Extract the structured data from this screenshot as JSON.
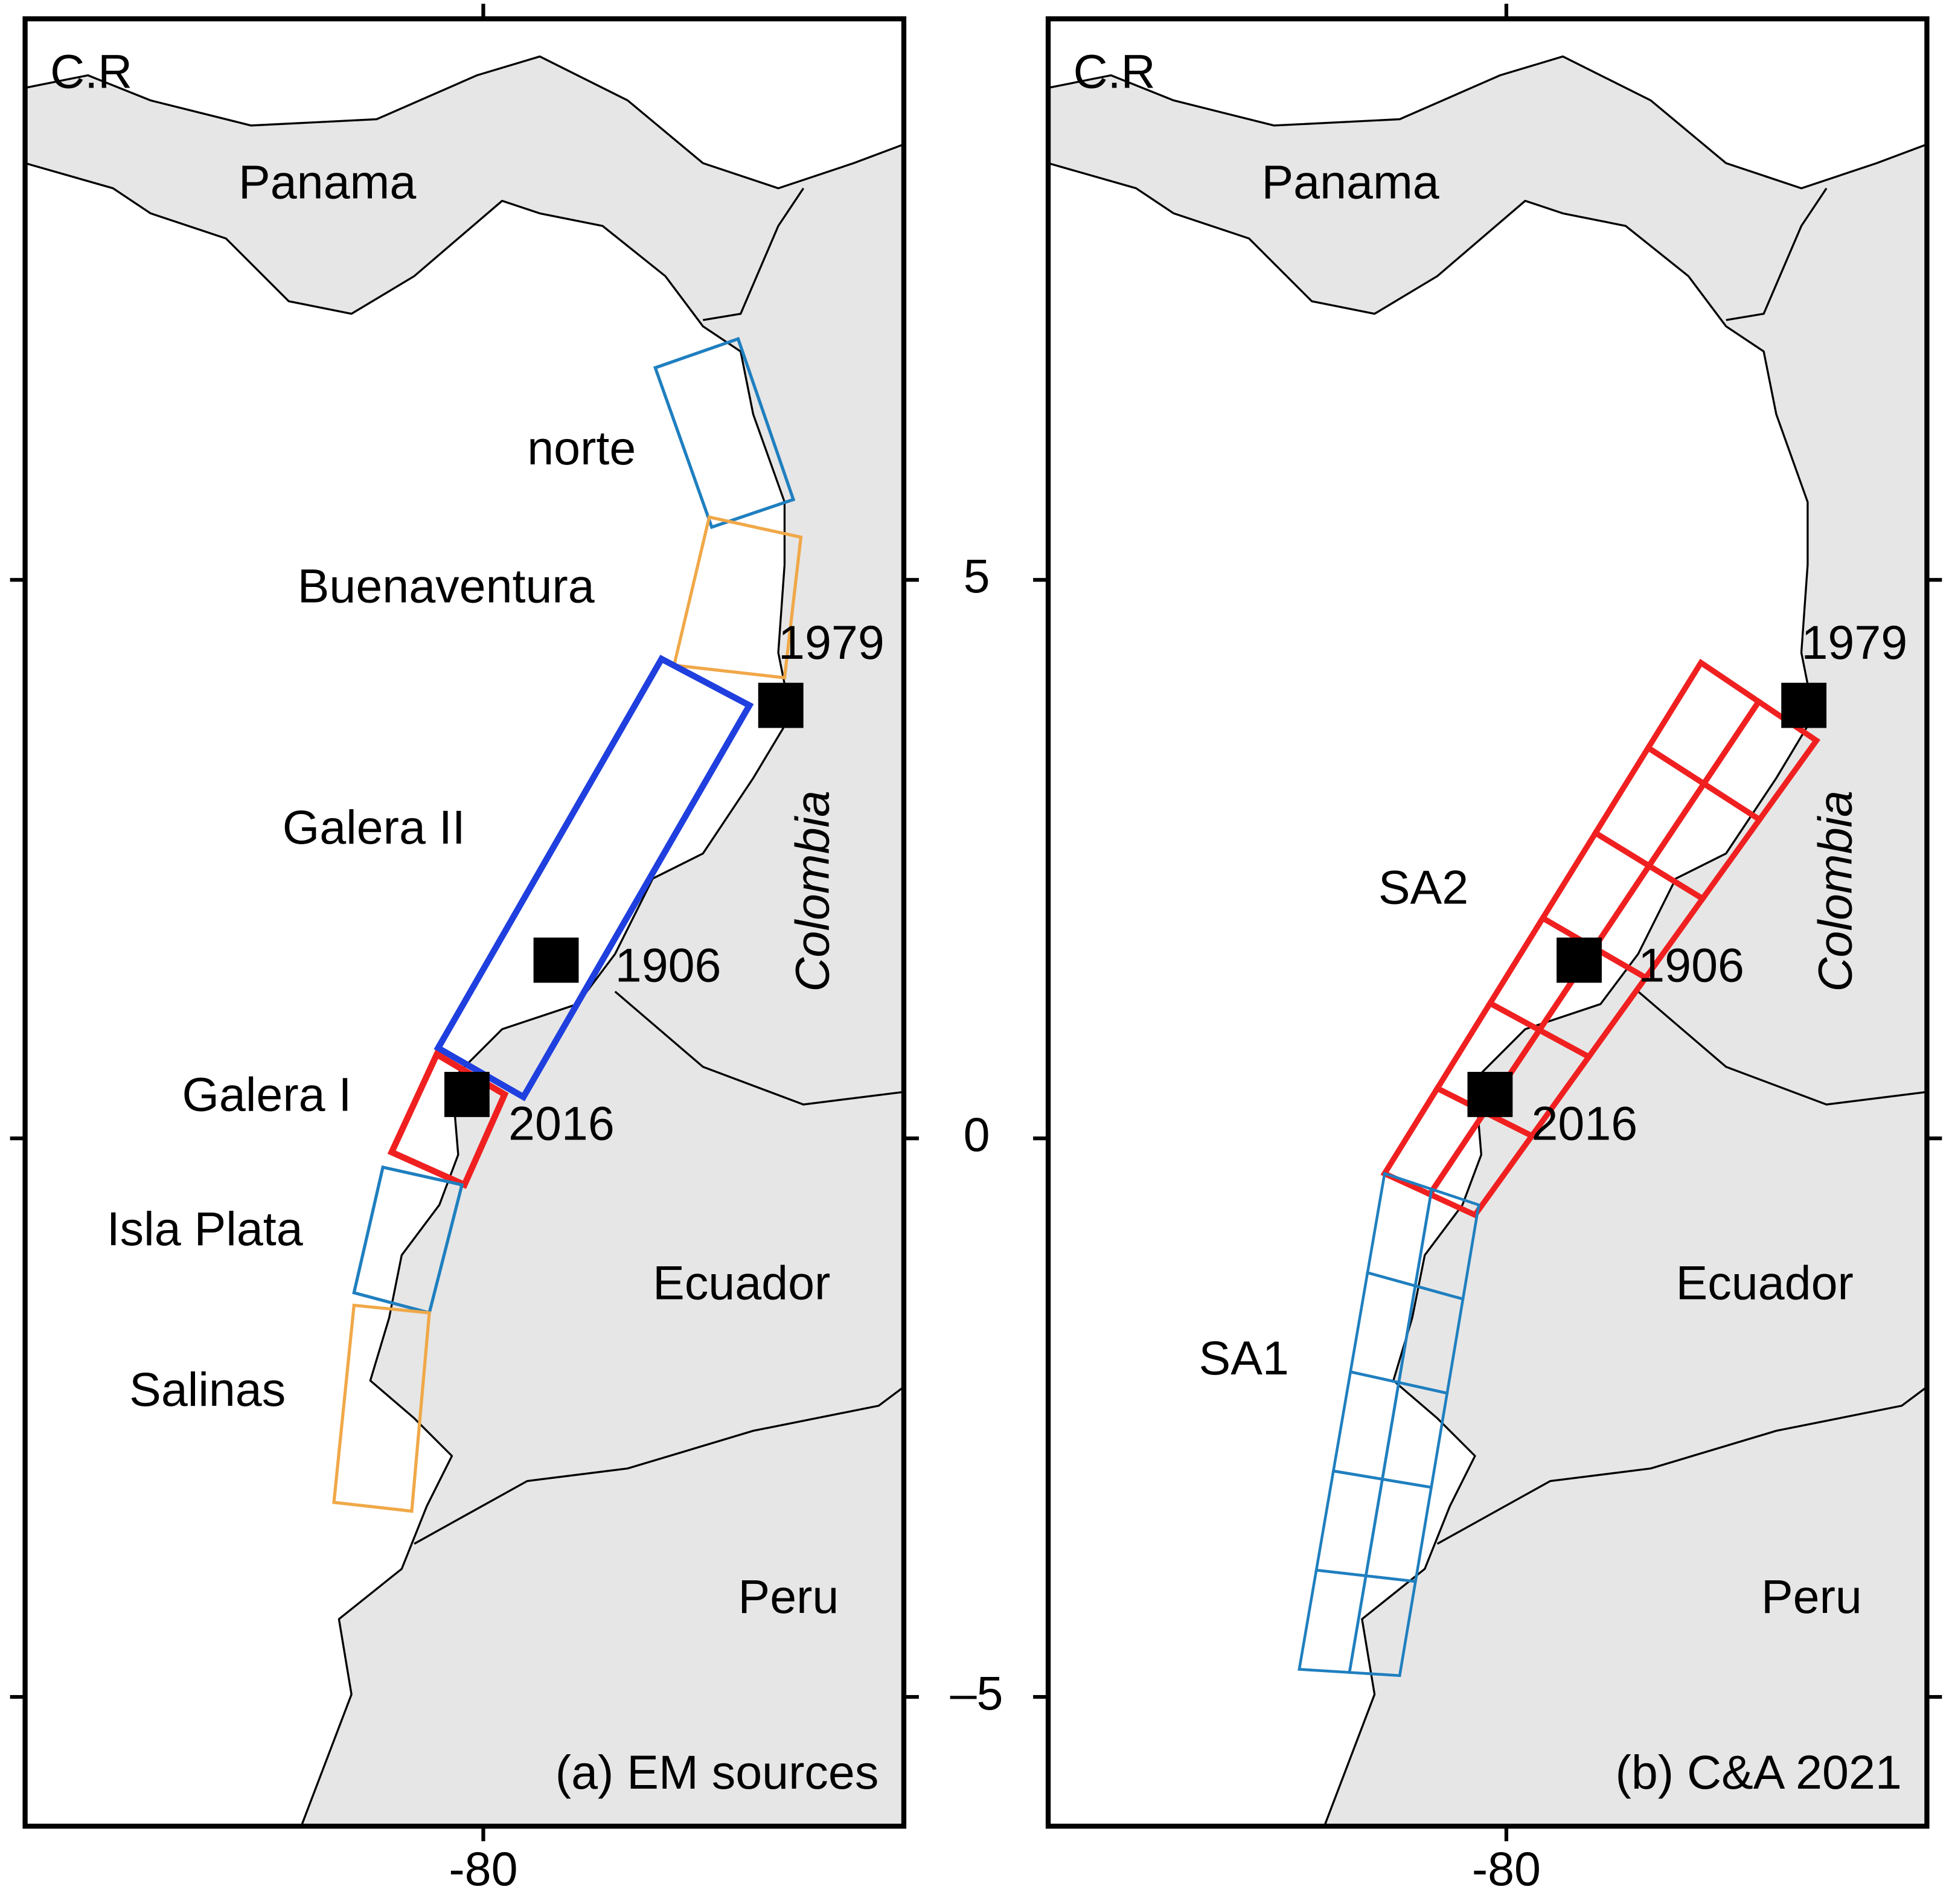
{
  "axes": {
    "xticks": [
      {
        "value": -80,
        "label": "-80"
      }
    ],
    "yticks": [
      5,
      0,
      {
        "value": -5,
        "label": "–5"
      }
    ]
  },
  "panels": [
    {
      "title": "(a) EM sources",
      "region_labels": [
        "C.R",
        "Panama",
        "Colombia",
        "Ecuador",
        "Peru"
      ],
      "source_labels": [
        "norte",
        "Buenaventura",
        "Galera II",
        "Galera I",
        "Isla Plata",
        "Salinas"
      ],
      "event_labels": [
        "1979",
        "1906",
        "2016"
      ]
    },
    {
      "title": "(b) C&A 2021",
      "region_labels": [
        "C.R",
        "Panama",
        "Colombia",
        "Ecuador",
        "Peru"
      ],
      "source_labels": [
        "SA2",
        "SA1"
      ],
      "event_labels": [
        "1979",
        "1906",
        "2016"
      ]
    }
  ]
}
